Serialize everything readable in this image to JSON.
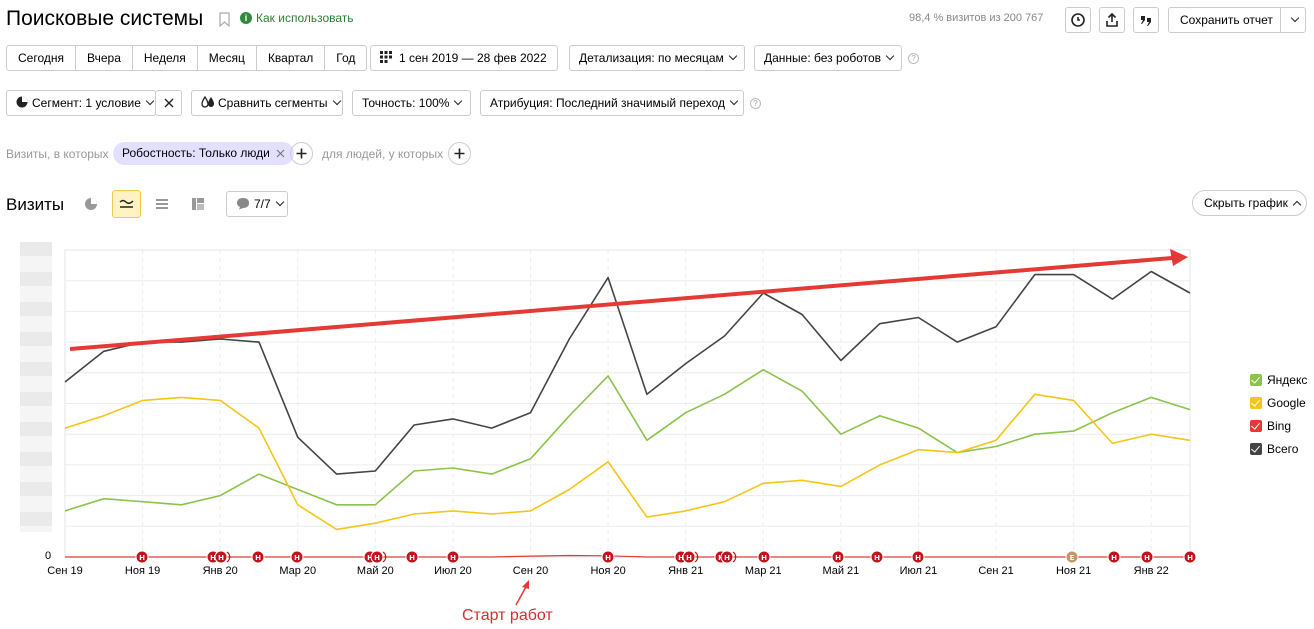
{
  "header": {
    "title": "Поисковые системы",
    "how_to_use": "Как использовать",
    "visits_info": "98,4 % визитов из 200 767",
    "save_report": "Сохранить отчет"
  },
  "periods": [
    "Сегодня",
    "Вчера",
    "Неделя",
    "Месяц",
    "Квартал",
    "Год"
  ],
  "date_range": "1 сен 2019 — 28 фев 2022",
  "detail": "Детализация: по месяцам",
  "data_filter": "Данные: без роботов",
  "segment": "Сегмент: 1 условие",
  "compare": "Сравнить сегменты",
  "accuracy": "Точность: 100%",
  "attribution": "Атрибуция: Последний значимый переход",
  "filters": {
    "visits_where": "Визиты, в которых",
    "chip": "Робостность: Только люди",
    "people_where": "для людей, у которых"
  },
  "chart_header": {
    "title": "Визиты",
    "comments": "7/7",
    "hide_chart": "Скрыть график"
  },
  "annotation": "Старт работ",
  "colors": {
    "yandex": "#8bc34a",
    "google": "#f5c518",
    "bing": "#e53935",
    "total": "#444444",
    "arrow": "#e53935",
    "active_toggle": "#fff3c4"
  },
  "chart_data": {
    "type": "line",
    "x": [
      "Сен 19",
      "Окт 19",
      "Ноя 19",
      "Дек 19",
      "Янв 20",
      "Фев 20",
      "Мар 20",
      "Апр 20",
      "Май 20",
      "Июн 20",
      "Июл 20",
      "Авг 20",
      "Сен 20",
      "Окт 20",
      "Ноя 20",
      "Дек 20",
      "Янв 21",
      "Фев 21",
      "Мар 21",
      "Апр 21",
      "Май 21",
      "Июн 21",
      "Июл 21",
      "Авг 21",
      "Сен 21",
      "Окт 21",
      "Ноя 21",
      "Дек 21",
      "Янв 22",
      "Фев 22"
    ],
    "x_tick_labels": [
      "Сен 19",
      "Ноя 19",
      "Янв 20",
      "Мар 20",
      "Май 20",
      "Июл 20",
      "Сен 20",
      "Ноя 20",
      "Янв 21",
      "Мар 21",
      "Май 21",
      "Июл 21",
      "Сен 21",
      "Ноя 21",
      "Янв 22"
    ],
    "y_tick_labels": [
      "0"
    ],
    "ylim": [
      0,
      100
    ],
    "series": [
      {
        "name": "Яндекс",
        "values": [
          15,
          19,
          18,
          17,
          20,
          27,
          22,
          17,
          17,
          28,
          29,
          27,
          32,
          46,
          59,
          38,
          47,
          53,
          61,
          54,
          40,
          46,
          42,
          34,
          36,
          40,
          41,
          47,
          52,
          48
        ]
      },
      {
        "name": "Google",
        "values": [
          42,
          46,
          51,
          52,
          51,
          42,
          17,
          9,
          11,
          14,
          15,
          14,
          15,
          22,
          31,
          13,
          15,
          18,
          24,
          25,
          23,
          30,
          35,
          34,
          38,
          53,
          51,
          37,
          40,
          38
        ]
      },
      {
        "name": "Bing",
        "values": [
          0,
          0,
          0,
          0,
          0,
          0,
          0,
          0,
          0,
          0,
          0,
          0,
          0.3,
          0.5,
          0.4,
          0,
          0,
          0,
          0,
          0,
          0,
          0,
          0,
          0,
          0,
          0,
          0,
          0,
          0,
          0
        ]
      },
      {
        "name": "Всего",
        "values": [
          57,
          67,
          70,
          70,
          71,
          70,
          39,
          27,
          28,
          43,
          45,
          42,
          47,
          71,
          91,
          53,
          63,
          72,
          86,
          79,
          64,
          76,
          78,
          70,
          75,
          92,
          92,
          84,
          93,
          86
        ]
      }
    ],
    "markers": [
      "Н",
      "Н",
      "Н",
      "Н",
      "Н",
      "Н",
      "Н",
      "Н",
      "Н",
      "Н",
      "Н",
      "Н",
      "Н",
      "Н",
      "Е",
      "Н",
      "Н",
      "Н",
      "Н"
    ]
  }
}
